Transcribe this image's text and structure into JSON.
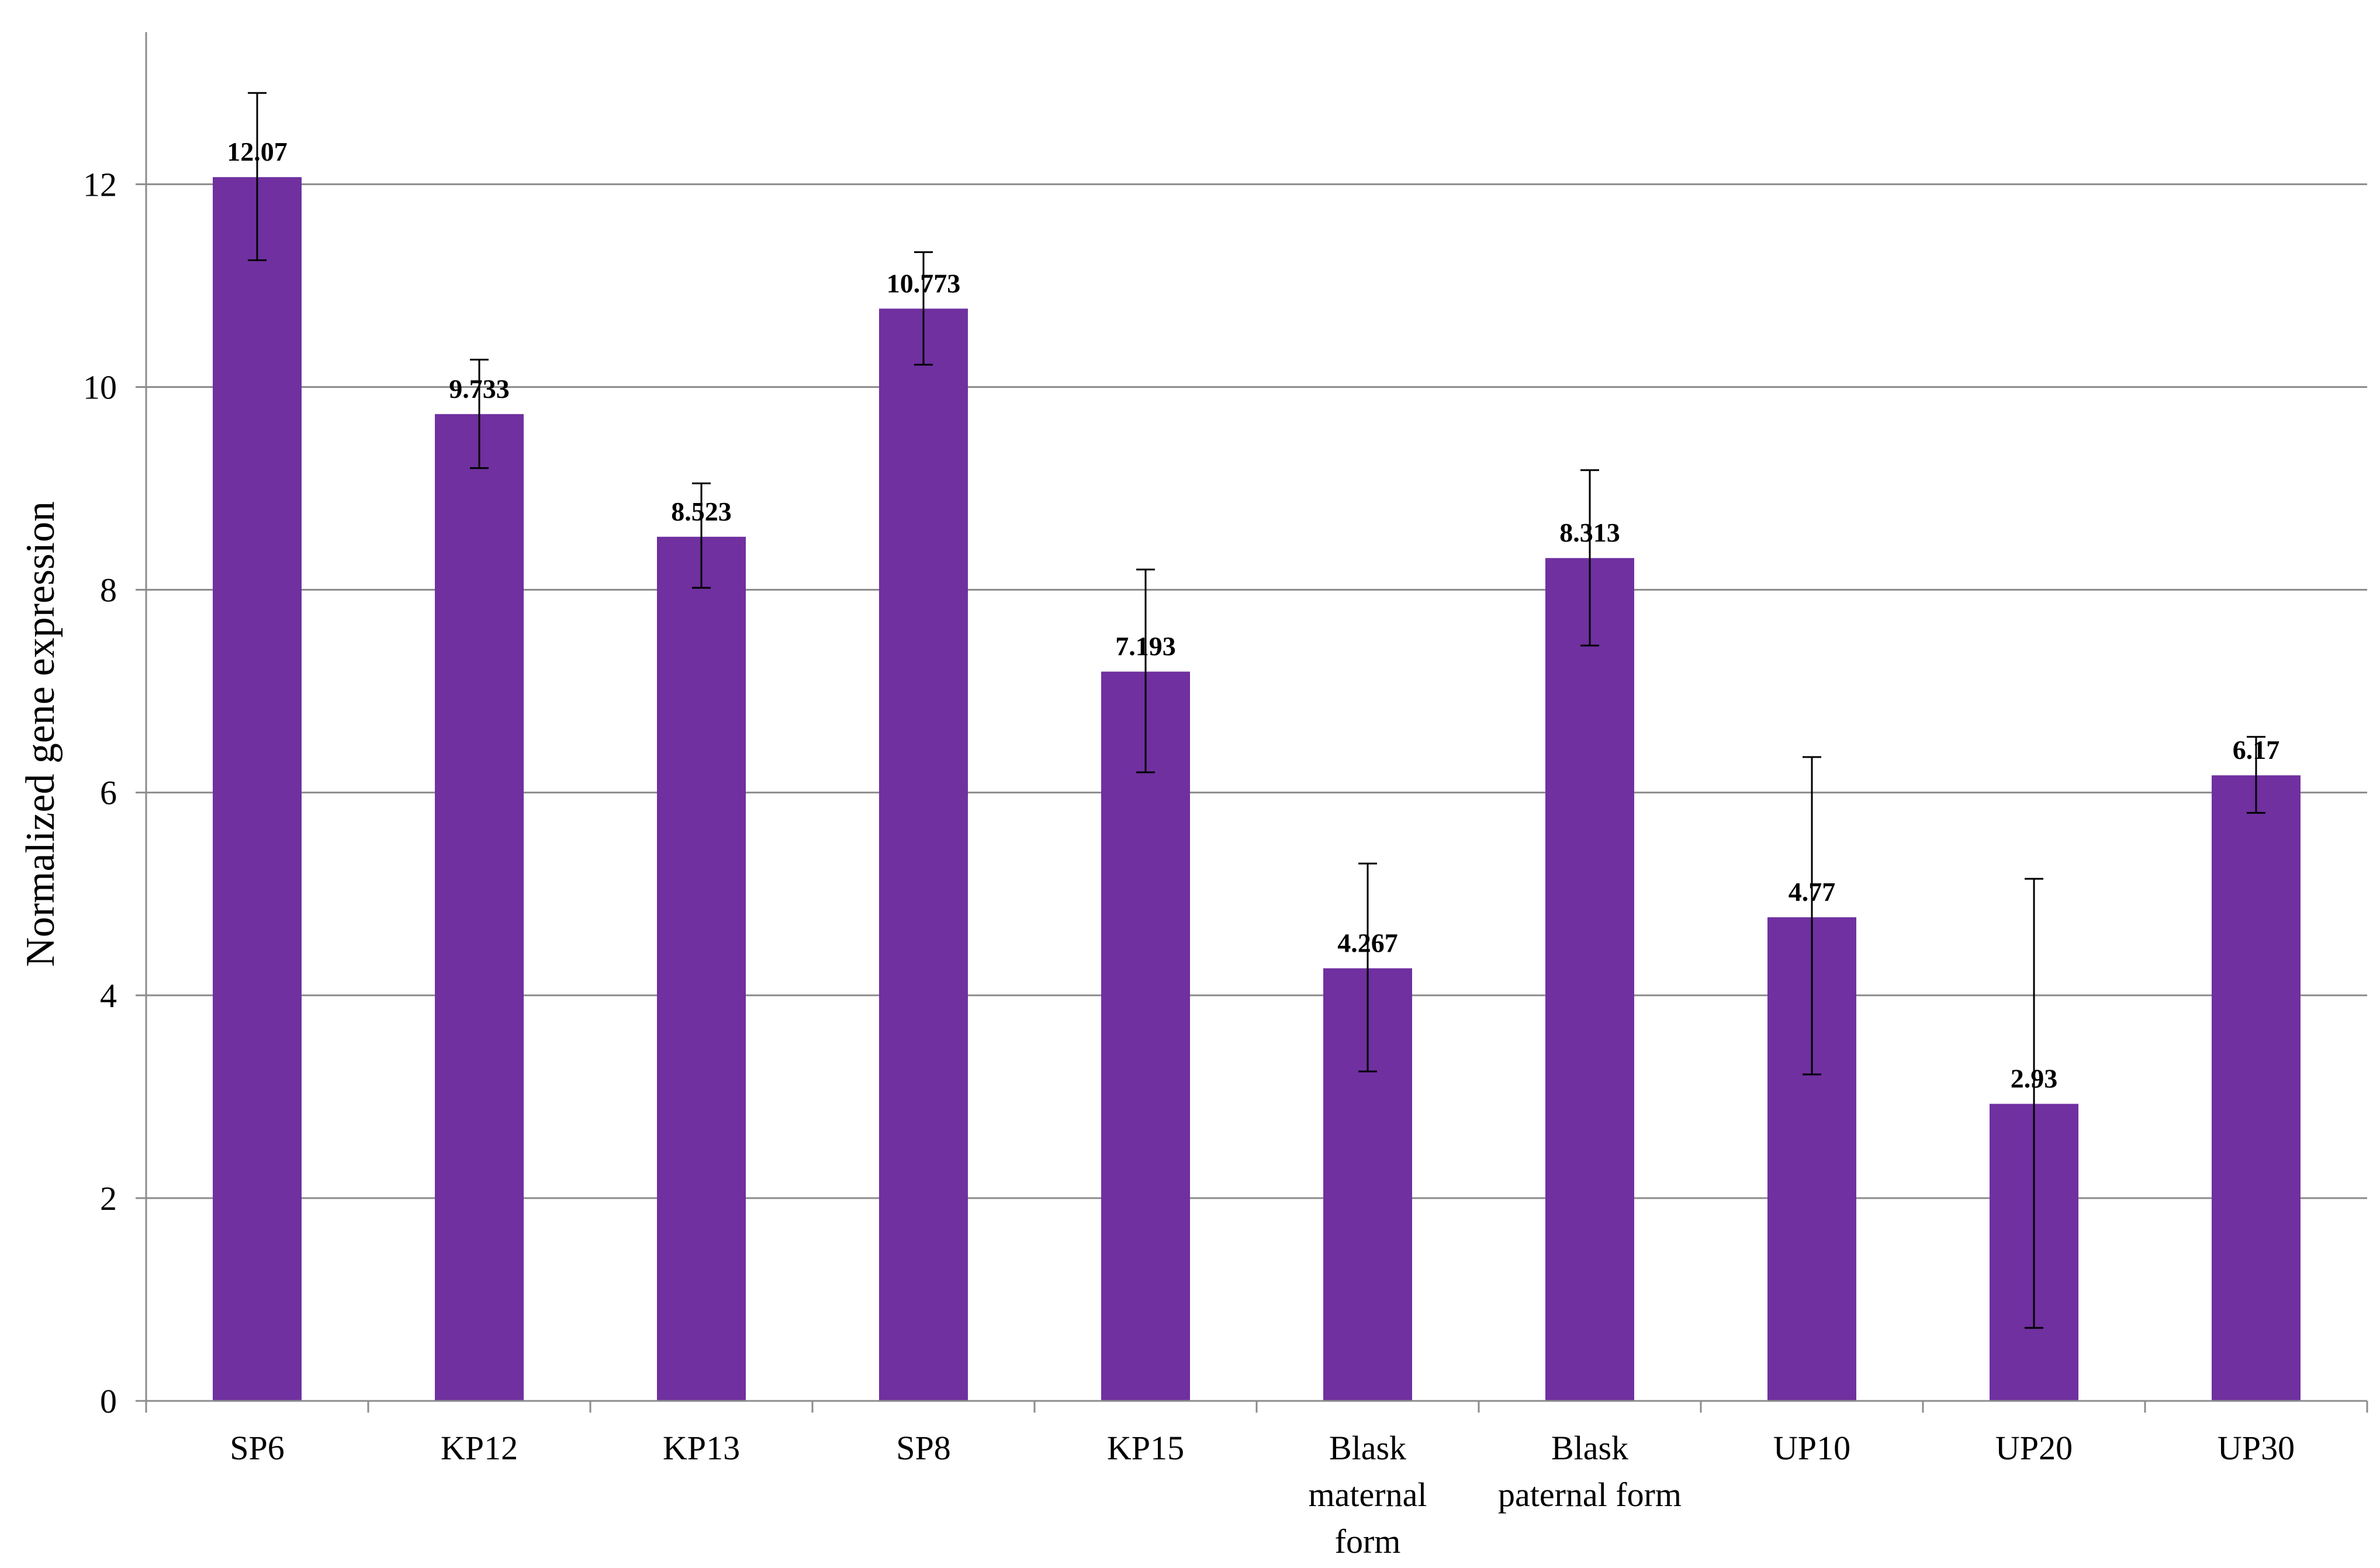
{
  "chart_data": {
    "type": "bar",
    "title": "",
    "xlabel": "",
    "ylabel": "Normalized  gene expression",
    "ylim": [
      0,
      12
    ],
    "yticks": [
      0,
      2,
      4,
      6,
      8,
      10,
      12
    ],
    "grid": true,
    "legend": "none",
    "bar_color": "#7030A0",
    "categories": [
      [
        "SP6"
      ],
      [
        "KP12"
      ],
      [
        "KP13"
      ],
      [
        "SP8"
      ],
      [
        "KP15"
      ],
      [
        "Blask",
        "maternal",
        "form"
      ],
      [
        "Blask",
        "paternal form"
      ],
      [
        "UP10"
      ],
      [
        "UP20"
      ],
      [
        "UP30"
      ]
    ],
    "values": [
      12.07,
      9.733,
      8.523,
      10.773,
      7.193,
      4.267,
      8.313,
      4.77,
      2.93,
      6.17
    ],
    "value_labels": [
      "12.07",
      "9.733",
      "8.523",
      "10.773",
      "7.193",
      "4.267",
      "8.313",
      "4.77",
      "2.93",
      "6.17"
    ],
    "error_low": [
      11.25,
      9.2,
      8.02,
      10.22,
      6.2,
      3.25,
      7.45,
      3.22,
      0.72,
      5.8
    ],
    "error_high": [
      12.9,
      10.27,
      9.05,
      11.33,
      8.2,
      5.3,
      9.18,
      6.35,
      5.15,
      6.55
    ]
  }
}
